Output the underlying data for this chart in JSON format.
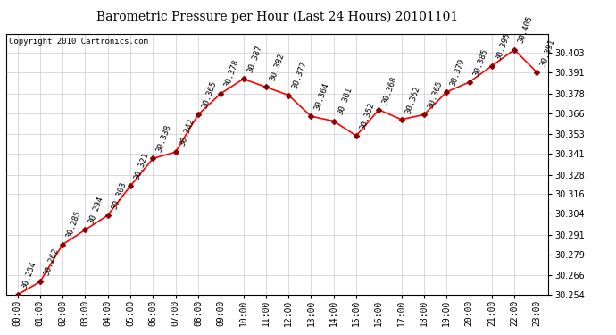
{
  "title": "Barometric Pressure per Hour (Last 24 Hours) 20101101",
  "copyright": "Copyright 2010 Cartronics.com",
  "hours": [
    "00:00",
    "01:00",
    "02:00",
    "03:00",
    "04:00",
    "05:00",
    "06:00",
    "07:00",
    "08:00",
    "09:00",
    "10:00",
    "11:00",
    "12:00",
    "13:00",
    "14:00",
    "15:00",
    "16:00",
    "17:00",
    "18:00",
    "19:00",
    "20:00",
    "21:00",
    "22:00",
    "23:00"
  ],
  "values": [
    30.254,
    30.262,
    30.285,
    30.294,
    30.303,
    30.321,
    30.338,
    30.342,
    30.365,
    30.378,
    30.387,
    30.382,
    30.377,
    30.364,
    30.361,
    30.352,
    30.368,
    30.362,
    30.365,
    30.379,
    30.385,
    30.395,
    30.405,
    30.391
  ],
  "ylim_min": 30.254,
  "ylim_max": 30.415,
  "yticks": [
    30.254,
    30.266,
    30.279,
    30.291,
    30.304,
    30.316,
    30.328,
    30.341,
    30.353,
    30.366,
    30.378,
    30.391,
    30.403
  ],
  "line_color": "red",
  "marker": "D",
  "marker_color": "darkred",
  "marker_size": 3,
  "bg_color": "#ffffff",
  "grid_color": "#cccccc",
  "label_rotation": 70,
  "label_fontsize": 6.5,
  "tick_fontsize": 7,
  "title_fontsize": 10,
  "copyright_fontsize": 6.5
}
